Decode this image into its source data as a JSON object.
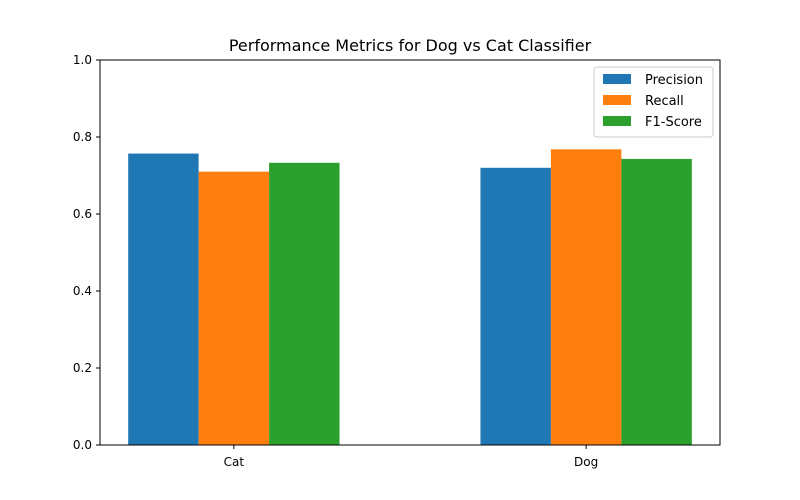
{
  "chart_data": {
    "type": "bar",
    "title": "Performance Metrics for Dog vs Cat Classifier",
    "xlabel": "",
    "ylabel": "",
    "categories": [
      "Cat",
      "Dog"
    ],
    "series": [
      {
        "name": "Precision",
        "values": [
          0.757,
          0.72
        ],
        "color": "#1f77b4"
      },
      {
        "name": "Recall",
        "values": [
          0.71,
          0.768
        ],
        "color": "#ff7f0e"
      },
      {
        "name": "F1-Score",
        "values": [
          0.733,
          0.743
        ],
        "color": "#2ca02c"
      }
    ],
    "ylim": [
      0,
      1.0
    ],
    "yticks": [
      "0.0",
      "0.2",
      "0.4",
      "0.6",
      "0.8",
      "1.0"
    ],
    "grid": false,
    "legend_position": "top-right"
  }
}
